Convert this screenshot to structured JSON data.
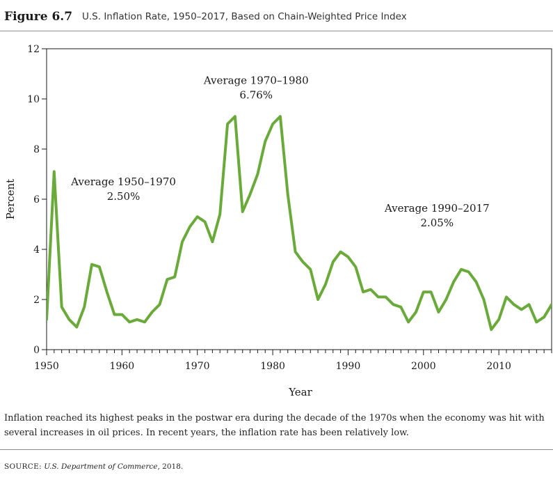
{
  "figure": {
    "label": "Figure 6.7",
    "title": "U.S. Inflation Rate, 1950–2017, Based on Chain-Weighted Price Index"
  },
  "caption": "Inflation reached its highest peaks in the postwar era during the decade of the 1970s when the economy was hit with several increases in oil prices. In recent years, the inflation rate has been relatively low.",
  "source": {
    "label": "SOURCE:",
    "text": "U.S. Department of Commerce,",
    "year": "2018."
  },
  "chart_data": {
    "type": "line",
    "xlabel": "Year",
    "ylabel": "Percent",
    "xlim": [
      1950,
      2017
    ],
    "ylim": [
      0,
      12
    ],
    "x_ticks": [
      1950,
      1960,
      1970,
      1980,
      1990,
      2000,
      2010
    ],
    "y_ticks": [
      0,
      2,
      4,
      6,
      8,
      10,
      12
    ],
    "grid": false,
    "line_color": "#6aaa3a",
    "series": [
      {
        "x": [
          1950,
          1951,
          1952,
          1953,
          1954,
          1955,
          1956,
          1957,
          1958,
          1959,
          1960,
          1961,
          1962,
          1963,
          1964,
          1965,
          1966,
          1967,
          1968,
          1969,
          1970,
          1971,
          1972,
          1973,
          1974,
          1975,
          1976,
          1977,
          1978,
          1979,
          1980,
          1981,
          1982,
          1983,
          1984,
          1985,
          1986,
          1987,
          1988,
          1989,
          1990,
          1991,
          1992,
          1993,
          1994,
          1995,
          1996,
          1997,
          1998,
          1999,
          2000,
          2001,
          2002,
          2003,
          2004,
          2005,
          2006,
          2007,
          2008,
          2009,
          2010,
          2011,
          2012,
          2013,
          2014,
          2015,
          2016,
          2017
        ],
        "values": [
          1.2,
          7.1,
          1.7,
          1.2,
          0.9,
          1.7,
          3.4,
          3.3,
          2.3,
          1.4,
          1.4,
          1.1,
          1.2,
          1.1,
          1.5,
          1.8,
          2.8,
          2.9,
          4.3,
          4.9,
          5.3,
          5.1,
          4.3,
          5.4,
          9.0,
          9.3,
          5.5,
          6.2,
          7.0,
          8.3,
          9.0,
          9.3,
          6.2,
          3.9,
          3.5,
          3.2,
          2.0,
          2.6,
          3.5,
          3.9,
          3.7,
          3.3,
          2.3,
          2.4,
          2.1,
          2.1,
          1.8,
          1.7,
          1.1,
          1.5,
          2.3,
          2.3,
          1.5,
          2.0,
          2.7,
          3.2,
          3.1,
          2.7,
          2.0,
          0.8,
          1.2,
          2.1,
          1.8,
          1.6,
          1.8,
          1.1,
          1.3,
          1.8
        ]
      }
    ],
    "annotations": [
      {
        "lines": [
          "Average 1950–1970",
          "2.50%"
        ],
        "x": 1960.2,
        "y": 6.55
      },
      {
        "lines": [
          "Average 1970–1980",
          "6.76%"
        ],
        "x": 1977.8,
        "y": 10.6
      },
      {
        "lines": [
          "Average 1990–2017",
          "2.05%"
        ],
        "x": 2001.8,
        "y": 5.5
      }
    ]
  }
}
